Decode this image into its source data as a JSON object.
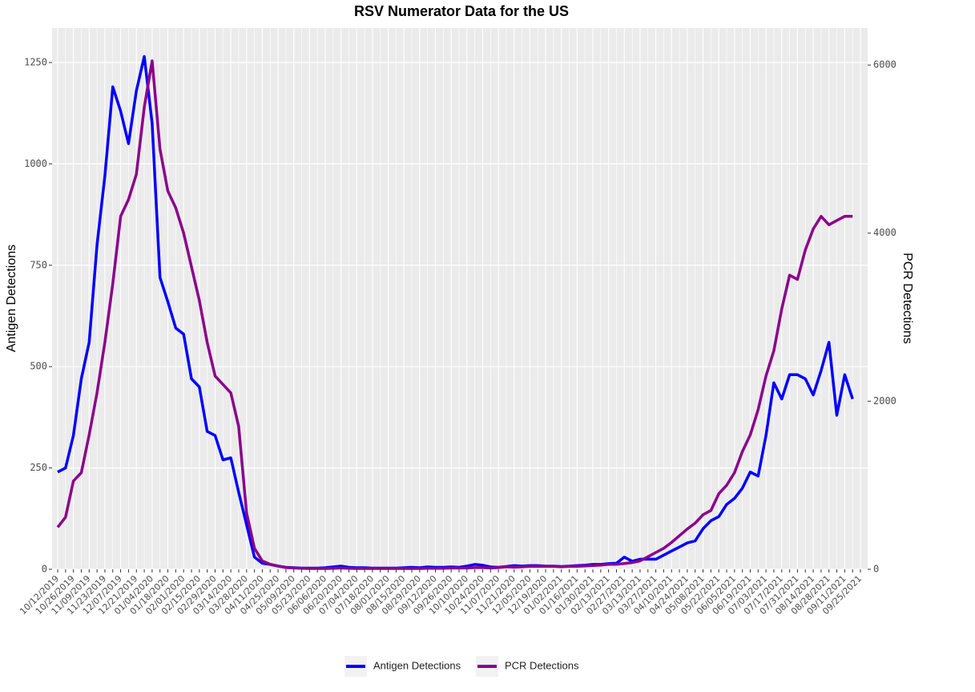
{
  "chart_data": {
    "type": "line",
    "title": "RSV Numerator Data for the US",
    "y_label": "Antigen Detections",
    "y2_label": "PCR Detections",
    "categories": [
      "10/12/2019",
      null,
      "10/26/2019",
      null,
      "11/09/2019",
      null,
      "11/23/2019",
      null,
      "12/07/2019",
      null,
      "12/21/2019",
      null,
      "01/04/2020",
      null,
      "01/18/2020",
      null,
      "02/01/2020",
      null,
      "02/15/2020",
      null,
      "02/29/2020",
      null,
      "03/14/2020",
      null,
      "03/28/2020",
      null,
      "04/11/2020",
      null,
      "04/25/2020",
      null,
      "05/09/2020",
      null,
      "05/23/2020",
      null,
      "06/06/2020",
      null,
      "06/20/2020",
      null,
      "07/04/2020",
      null,
      "07/18/2020",
      null,
      "08/01/2020",
      null,
      "08/15/2020",
      null,
      "08/29/2020",
      null,
      "09/12/2020",
      null,
      "09/26/2020",
      null,
      "10/10/2020",
      null,
      "10/24/2020",
      null,
      "11/07/2020",
      null,
      "11/21/2020",
      null,
      "12/05/2020",
      null,
      "12/19/2020",
      null,
      "01/02/2021",
      null,
      "01/16/2021",
      null,
      "01/30/2021",
      null,
      "02/13/2021",
      null,
      "02/27/2021",
      null,
      "03/13/2021",
      null,
      "03/27/2021",
      null,
      "04/10/2021",
      null,
      "04/24/2021",
      null,
      "05/08/2021",
      null,
      "05/22/2021",
      null,
      "06/05/2021",
      null,
      "06/19/2021",
      null,
      "07/03/2021",
      null,
      "07/17/2021",
      null,
      "07/31/2021",
      null,
      "08/14/2021",
      null,
      "08/28/2021",
      null,
      "09/11/2021",
      null,
      "09/25/2021"
    ],
    "series": [
      {
        "name": "Antigen Detections",
        "color": "#0000ff",
        "axis": "y",
        "values": [
          240,
          250,
          330,
          470,
          560,
          800,
          970,
          1190,
          1130,
          1050,
          1180,
          1265,
          1100,
          720,
          660,
          595,
          580,
          470,
          450,
          340,
          330,
          270,
          275,
          190,
          110,
          30,
          15,
          12,
          8,
          5,
          4,
          3,
          3,
          3,
          4,
          6,
          8,
          5,
          4,
          4,
          3,
          3,
          3,
          3,
          4,
          5,
          4,
          6,
          5,
          5,
          6,
          5,
          8,
          12,
          10,
          6,
          5,
          7,
          9,
          8,
          9,
          9,
          8,
          8,
          7,
          8,
          9,
          10,
          12,
          12,
          14,
          15,
          30,
          20,
          25,
          25,
          25,
          35,
          45,
          55,
          65,
          70,
          100,
          120,
          130,
          160,
          175,
          200,
          240,
          230,
          330,
          460,
          420,
          480,
          480,
          470,
          430,
          490,
          560,
          380,
          480,
          420,
          null
        ]
      },
      {
        "name": "PCR Detections",
        "color": "#8b008b",
        "axis": "y2",
        "values": [
          500,
          620,
          1050,
          1150,
          1600,
          2100,
          2700,
          3400,
          4200,
          4400,
          4700,
          5500,
          6050,
          5000,
          4500,
          4300,
          4000,
          3600,
          3200,
          2700,
          2300,
          2200,
          2100,
          1700,
          670,
          250,
          100,
          60,
          40,
          20,
          15,
          12,
          10,
          10,
          10,
          12,
          15,
          12,
          10,
          10,
          10,
          10,
          10,
          10,
          10,
          10,
          10,
          12,
          12,
          12,
          15,
          15,
          15,
          20,
          20,
          15,
          20,
          30,
          25,
          30,
          35,
          35,
          35,
          35,
          30,
          35,
          35,
          40,
          45,
          50,
          60,
          60,
          70,
          80,
          100,
          150,
          200,
          250,
          320,
          400,
          480,
          550,
          650,
          700,
          900,
          1000,
          1150,
          1400,
          1600,
          1900,
          2300,
          2600,
          3100,
          3500,
          3450,
          3800,
          4050,
          4200,
          4100,
          4150,
          4200,
          4200,
          null
        ]
      }
    ],
    "ylim": [
      0,
      1335
    ],
    "yticks": [
      0,
      250,
      500,
      750,
      1000,
      1250
    ],
    "y2lim": [
      0,
      6440
    ],
    "y2ticks": [
      0,
      2000,
      4000,
      6000
    ],
    "grid": true,
    "legend": "bottom"
  }
}
